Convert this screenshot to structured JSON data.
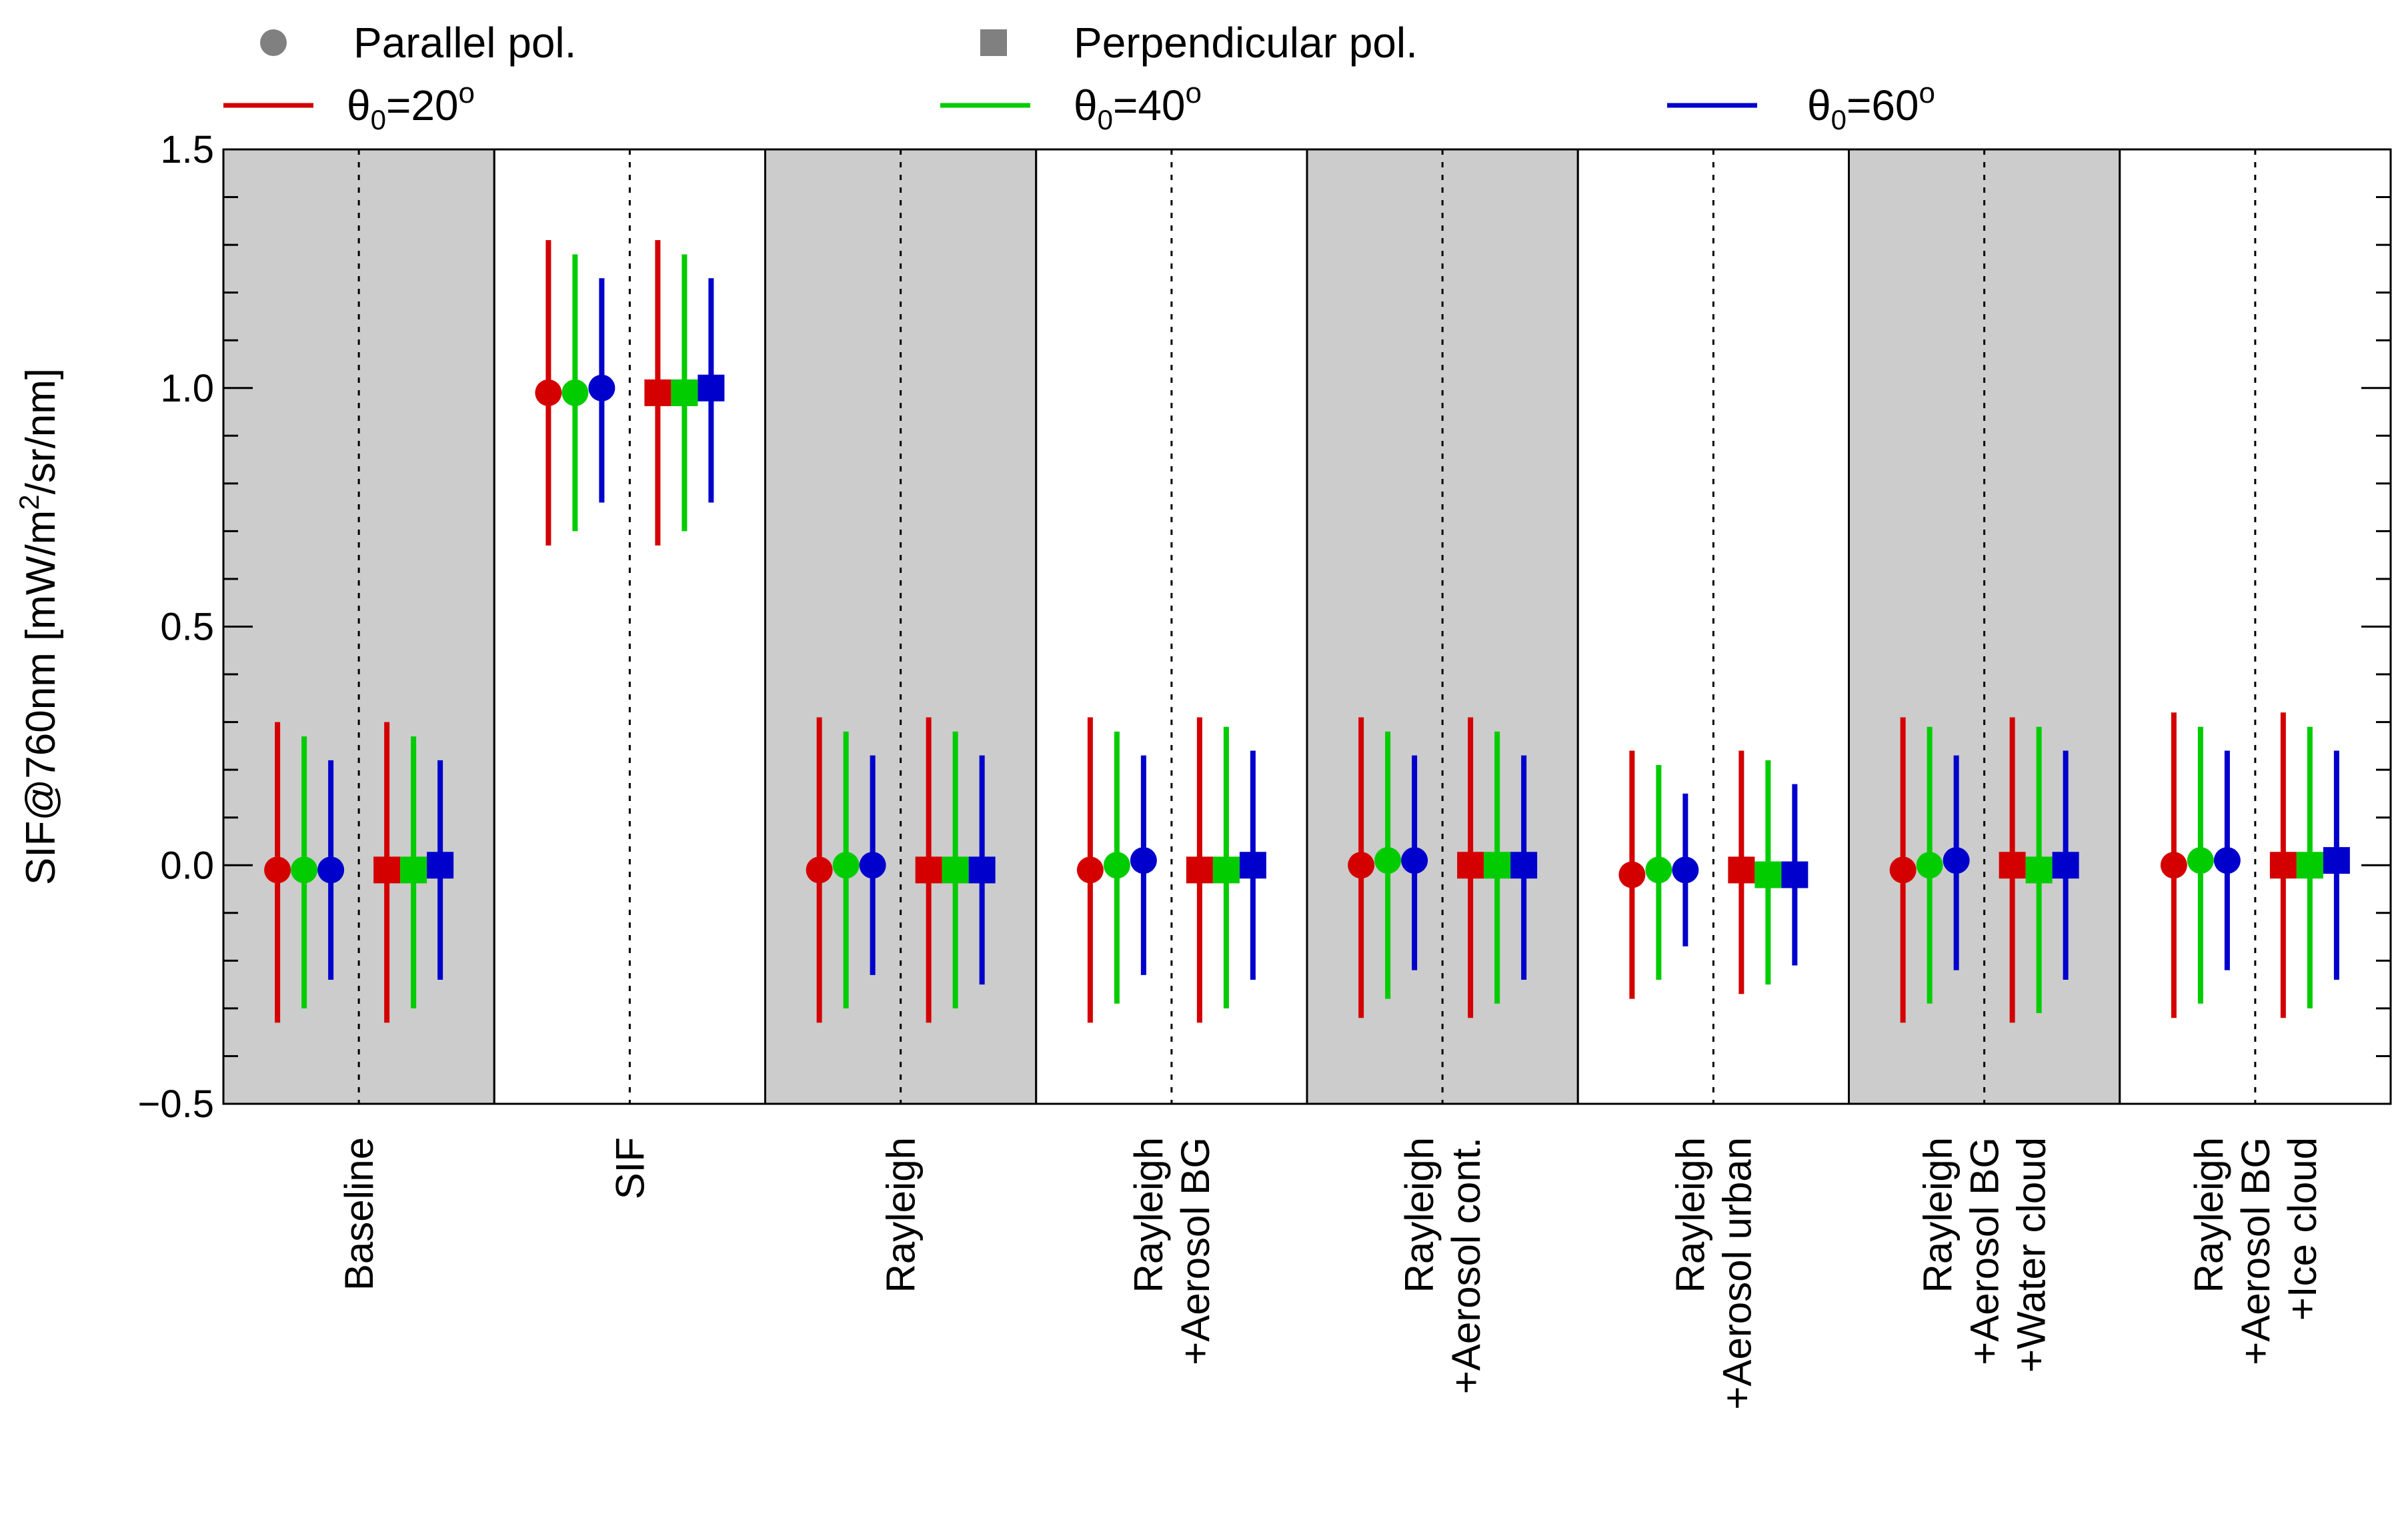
{
  "chart_data": {
    "type": "scatter",
    "title": "",
    "xlabel": "",
    "ylabel": "SIF@760nm [mW/m²/sr/nm]",
    "ylabel_parts": {
      "main": "SIF@760nm [mW/m",
      "sup": "2",
      "rest": "/sr/nm]"
    },
    "ylim": [
      -0.5,
      1.5
    ],
    "yticks": [
      -0.5,
      0.0,
      0.5,
      1.0,
      1.5
    ],
    "ytick_labels": [
      "−0.5",
      "0.0",
      "0.5",
      "1.0",
      "1.5"
    ],
    "minor_ytick_step": 0.1,
    "legend": {
      "markers": [
        {
          "name": "Parallel pol.",
          "shape": "circle"
        },
        {
          "name": "Perpendicular pol.",
          "shape": "square"
        }
      ],
      "series": [
        {
          "prefix": "θ",
          "sub": "0",
          "suffix": "=20",
          "sup": "o",
          "color": "#d40000"
        },
        {
          "prefix": "θ",
          "sub": "0",
          "suffix": "=40",
          "sup": "o",
          "color": "#00cc00"
        },
        {
          "prefix": "θ",
          "sub": "0",
          "suffix": "=60",
          "sup": "o",
          "color": "#0000cc"
        }
      ]
    },
    "categories": [
      {
        "lines": [
          "Baseline"
        ],
        "shaded": true,
        "parallel": [
          [
            -0.01,
            -0.33,
            0.3
          ],
          [
            -0.01,
            -0.3,
            0.27
          ],
          [
            -0.01,
            -0.24,
            0.22
          ]
        ],
        "perpendicular": [
          [
            -0.01,
            -0.33,
            0.3
          ],
          [
            -0.01,
            -0.3,
            0.27
          ],
          [
            0.0,
            -0.24,
            0.22
          ]
        ]
      },
      {
        "lines": [
          "SIF"
        ],
        "shaded": false,
        "parallel": [
          [
            0.99,
            0.67,
            1.31
          ],
          [
            0.99,
            0.7,
            1.28
          ],
          [
            1.0,
            0.76,
            1.23
          ]
        ],
        "perpendicular": [
          [
            0.99,
            0.67,
            1.31
          ],
          [
            0.99,
            0.7,
            1.28
          ],
          [
            1.0,
            0.76,
            1.23
          ]
        ]
      },
      {
        "lines": [
          "Rayleigh"
        ],
        "shaded": true,
        "parallel": [
          [
            -0.01,
            -0.33,
            0.31
          ],
          [
            0.0,
            -0.3,
            0.28
          ],
          [
            0.0,
            -0.23,
            0.23
          ]
        ],
        "perpendicular": [
          [
            -0.01,
            -0.33,
            0.31
          ],
          [
            -0.01,
            -0.3,
            0.28
          ],
          [
            -0.01,
            -0.25,
            0.23
          ]
        ]
      },
      {
        "lines": [
          "Rayleigh",
          "+Aerosol BG"
        ],
        "shaded": false,
        "parallel": [
          [
            -0.01,
            -0.33,
            0.31
          ],
          [
            0.0,
            -0.29,
            0.28
          ],
          [
            0.01,
            -0.23,
            0.23
          ]
        ],
        "perpendicular": [
          [
            -0.01,
            -0.33,
            0.31
          ],
          [
            -0.01,
            -0.3,
            0.29
          ],
          [
            0.0,
            -0.24,
            0.24
          ]
        ]
      },
      {
        "lines": [
          "Rayleigh",
          "+Aerosol cont."
        ],
        "shaded": true,
        "parallel": [
          [
            0.0,
            -0.32,
            0.31
          ],
          [
            0.01,
            -0.28,
            0.28
          ],
          [
            0.01,
            -0.22,
            0.23
          ]
        ],
        "perpendicular": [
          [
            0.0,
            -0.32,
            0.31
          ],
          [
            0.0,
            -0.29,
            0.28
          ],
          [
            0.0,
            -0.24,
            0.23
          ]
        ]
      },
      {
        "lines": [
          "Rayleigh",
          "+Aerosol urban"
        ],
        "shaded": false,
        "parallel": [
          [
            -0.02,
            -0.28,
            0.24
          ],
          [
            -0.01,
            -0.24,
            0.21
          ],
          [
            -0.01,
            -0.17,
            0.15
          ]
        ],
        "perpendicular": [
          [
            -0.01,
            -0.27,
            0.24
          ],
          [
            -0.02,
            -0.25,
            0.22
          ],
          [
            -0.02,
            -0.21,
            0.17
          ]
        ]
      },
      {
        "lines": [
          "Rayleigh",
          "+Aerosol BG",
          "+Water cloud"
        ],
        "shaded": true,
        "parallel": [
          [
            -0.01,
            -0.33,
            0.31
          ],
          [
            0.0,
            -0.29,
            0.29
          ],
          [
            0.01,
            -0.22,
            0.23
          ]
        ],
        "perpendicular": [
          [
            0.0,
            -0.33,
            0.31
          ],
          [
            -0.01,
            -0.31,
            0.29
          ],
          [
            0.0,
            -0.24,
            0.24
          ]
        ]
      },
      {
        "lines": [
          "Rayleigh",
          "+Aerosol BG",
          "+Ice cloud"
        ],
        "shaded": false,
        "parallel": [
          [
            0.0,
            -0.32,
            0.32
          ],
          [
            0.01,
            -0.29,
            0.29
          ],
          [
            0.01,
            -0.22,
            0.24
          ]
        ],
        "perpendicular": [
          [
            0.0,
            -0.32,
            0.32
          ],
          [
            0.0,
            -0.3,
            0.29
          ],
          [
            0.01,
            -0.24,
            0.24
          ]
        ]
      }
    ]
  }
}
